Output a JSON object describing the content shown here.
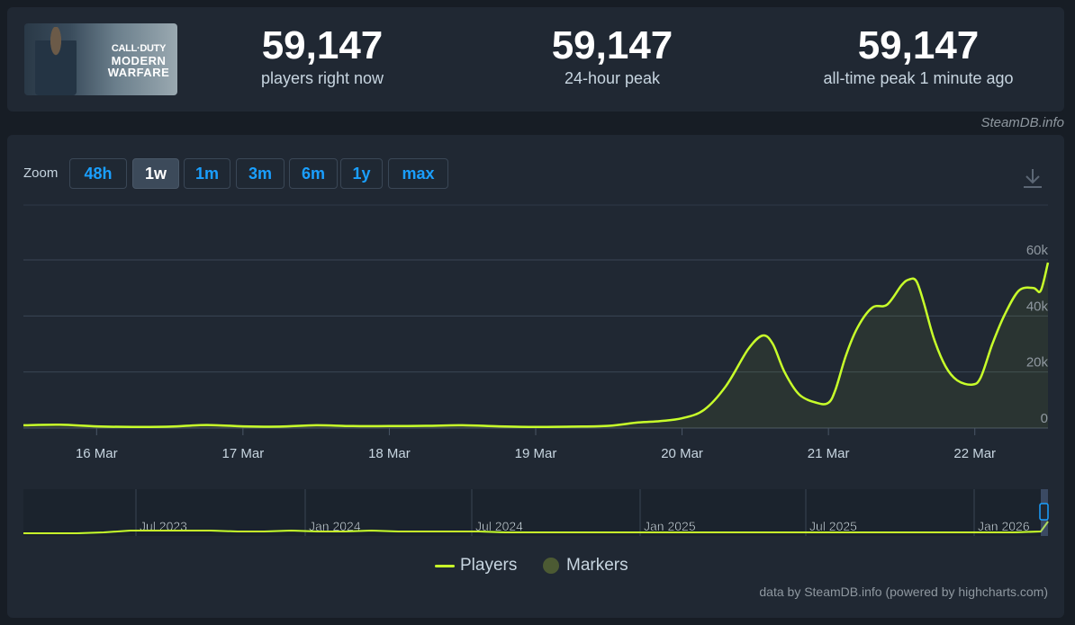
{
  "game": {
    "cover_title_line1": "CALL·DUTY",
    "cover_title_line2": "MODERN",
    "cover_title_line3": "WARFARE"
  },
  "stats": {
    "now_value": "59,147",
    "now_label": "players right now",
    "peak24_value": "59,147",
    "peak24_label": "24-hour peak",
    "alltime_value": "59,147",
    "alltime_label": "all-time peak 1 minute ago"
  },
  "steamdb_credit": "SteamDB.info",
  "zoom": {
    "label": "Zoom",
    "buttons": [
      "48h",
      "1w",
      "1m",
      "3m",
      "6m",
      "1y",
      "max"
    ],
    "active": "1w"
  },
  "legend": {
    "players": "Players",
    "markers": "Markers"
  },
  "credits": "data by SteamDB.info (powered by highcharts.com)",
  "colors": {
    "series": "#c8ff2a",
    "markers": "#4c5a33",
    "accent": "#1a9fff"
  },
  "chart_data": {
    "type": "line",
    "series": [
      {
        "name": "Players",
        "x": [
          15.5,
          15.75,
          16.0,
          16.25,
          16.5,
          16.75,
          17.0,
          17.25,
          17.5,
          17.75,
          18.0,
          18.25,
          18.5,
          18.75,
          19.0,
          19.25,
          19.5,
          19.7,
          19.85,
          20.0,
          20.15,
          20.3,
          20.45,
          20.55,
          20.62,
          20.7,
          20.8,
          20.92,
          21.0,
          21.05,
          21.12,
          21.2,
          21.3,
          21.4,
          21.5,
          21.55,
          21.6,
          21.65,
          21.72,
          21.8,
          21.88,
          21.98,
          22.04,
          22.12,
          22.2,
          22.3,
          22.4,
          22.45,
          22.5
        ],
        "values": [
          1000,
          1200,
          600,
          400,
          500,
          1100,
          600,
          500,
          1000,
          700,
          700,
          800,
          1000,
          600,
          400,
          500,
          800,
          2000,
          2500,
          3500,
          6500,
          15000,
          28000,
          33000,
          30000,
          20000,
          12000,
          9000,
          9000,
          14000,
          26000,
          36000,
          43000,
          44000,
          51000,
          53000,
          52500,
          45000,
          32000,
          22000,
          17000,
          15500,
          18000,
          30000,
          40000,
          49000,
          50000,
          49000,
          59000
        ]
      }
    ],
    "x_ticks": [
      "16 Mar",
      "17 Mar",
      "18 Mar",
      "19 Mar",
      "20 Mar",
      "21 Mar",
      "22 Mar"
    ],
    "y_ticks": [
      "0",
      "20k",
      "40k",
      "60k"
    ],
    "ylim": [
      0,
      60000
    ],
    "grid": true,
    "legend_position": "bottom",
    "navigator": {
      "labels": [
        "Jul 2023",
        "Jan 2024",
        "Jul 2024",
        "Jan 2025",
        "Jul 2025",
        "Jan 2026"
      ]
    }
  }
}
